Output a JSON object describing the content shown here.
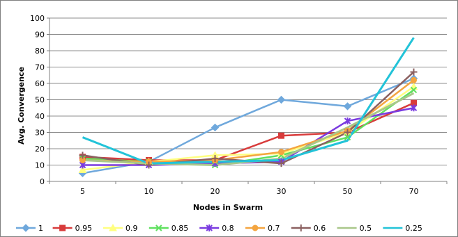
{
  "chart_data": {
    "type": "line",
    "title": "",
    "xlabel": "Nodes in Swarm",
    "ylabel": "Avg. Convergence",
    "categories": [
      "5",
      "10",
      "20",
      "30",
      "50",
      "70"
    ],
    "ylim": [
      0,
      100
    ],
    "yticks": [
      0,
      10,
      20,
      30,
      40,
      50,
      60,
      70,
      80,
      90,
      100
    ],
    "grid": true,
    "legend_position": "bottom",
    "series": [
      {
        "name": "1",
        "color": "#6fa8dc",
        "marker": "diamond",
        "values": [
          5,
          12,
          33,
          50,
          46,
          63
        ]
      },
      {
        "name": "0.95",
        "color": "#d83b3b",
        "marker": "square",
        "values": [
          15,
          13,
          13,
          28,
          30,
          48
        ]
      },
      {
        "name": "0.9",
        "color": "#ffff80",
        "marker": "triangle",
        "values": [
          7,
          12,
          16,
          17,
          30,
          58
        ]
      },
      {
        "name": "0.85",
        "color": "#5fe05f",
        "marker": "x",
        "values": [
          14,
          12,
          10,
          16,
          27,
          56
        ]
      },
      {
        "name": "0.8",
        "color": "#7a3be0",
        "marker": "star",
        "values": [
          10,
          10,
          11,
          12,
          37,
          45
        ]
      },
      {
        "name": "0.7",
        "color": "#f4a540",
        "marker": "circle",
        "values": [
          13,
          12,
          13,
          18,
          31,
          62
        ]
      },
      {
        "name": "0.6",
        "color": "#8b6060",
        "marker": "plus",
        "values": [
          16,
          10,
          14,
          11,
          30,
          67
        ]
      },
      {
        "name": "0.5",
        "color": "#a9c78a",
        "marker": "none",
        "values": [
          13,
          11,
          10,
          14,
          33,
          54
        ]
      },
      {
        "name": "0.25",
        "color": "#22c3d8",
        "marker": "none",
        "values": [
          27,
          11,
          12,
          13,
          25,
          88
        ]
      }
    ]
  }
}
